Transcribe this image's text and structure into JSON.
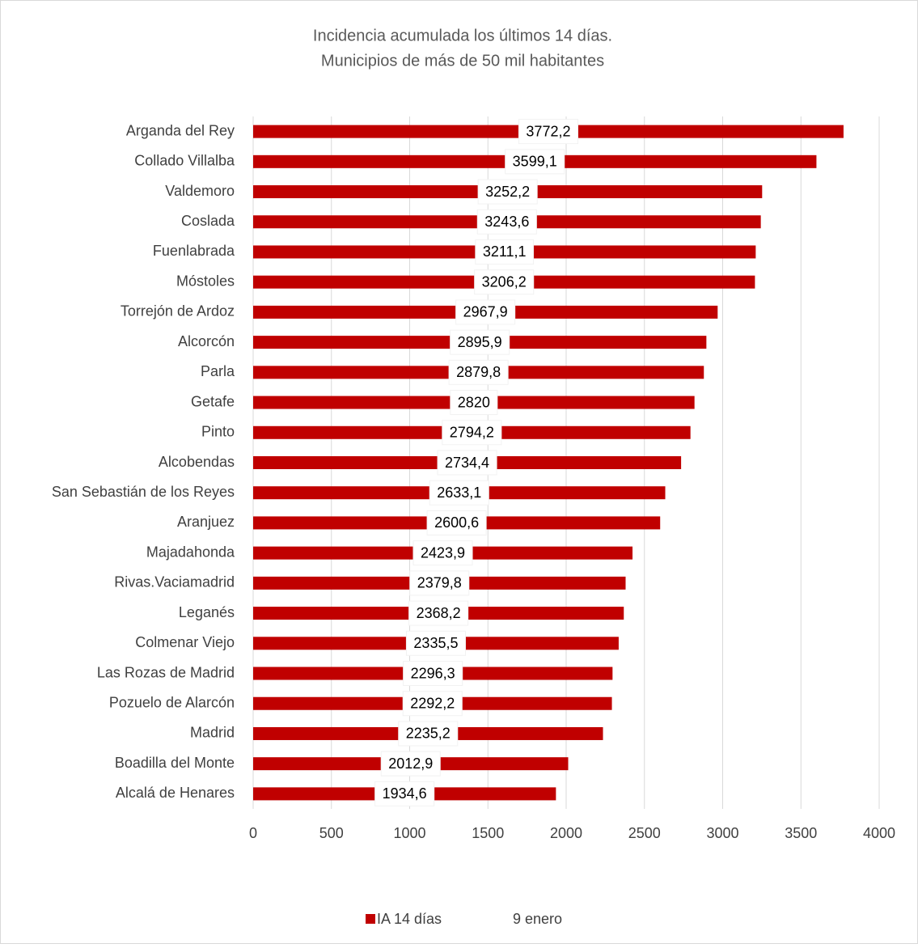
{
  "chart_data": {
    "type": "bar",
    "orientation": "horizontal",
    "title": [
      "Incidencia acumulada los últimos 14 días.",
      "Municipios de más de 50 mil habitantes"
    ],
    "categories": [
      "Arganda del Rey",
      "Collado Villalba",
      "Valdemoro",
      "Coslada",
      "Fuenlabrada",
      "Móstoles",
      "Torrejón de Ardoz",
      "Alcorcón",
      "Parla",
      "Getafe",
      "Pinto",
      "Alcobendas",
      "San Sebastián de los Reyes",
      "Aranjuez",
      "Majadahonda",
      "Rivas.Vaciamadrid",
      "Leganés",
      "Colmenar Viejo",
      "Las Rozas de Madrid",
      "Pozuelo de Alarcón",
      "Madrid",
      "Boadilla del Monte",
      "Alcalá de Henares"
    ],
    "series": [
      {
        "name": "IA 14 días",
        "color": "#c00000",
        "values": [
          3772.2,
          3599.1,
          3252.2,
          3243.6,
          3211.1,
          3206.2,
          2967.9,
          2895.9,
          2879.8,
          2820,
          2794.2,
          2734.4,
          2633.1,
          2600.6,
          2423.9,
          2379.8,
          2368.2,
          2335.5,
          2296.3,
          2292.2,
          2235.2,
          2012.9,
          1934.6
        ],
        "value_labels": [
          "3772,2",
          "3599,1",
          "3252,2",
          "3243,6",
          "3211,1",
          "3206,2",
          "2967,9",
          "2895,9",
          "2879,8",
          "2820",
          "2794,2",
          "2734,4",
          "2633,1",
          "2600,6",
          "2423,9",
          "2379,8",
          "2368,2",
          "2335,5",
          "2296,3",
          "2292,2",
          "2235,2",
          "2012,9",
          "1934,6"
        ]
      }
    ],
    "legend_extra": "9 enero",
    "xlim": [
      0,
      4000
    ],
    "xticks": [
      0,
      500,
      1000,
      1500,
      2000,
      2500,
      3000,
      3500,
      4000
    ],
    "grid": true
  }
}
